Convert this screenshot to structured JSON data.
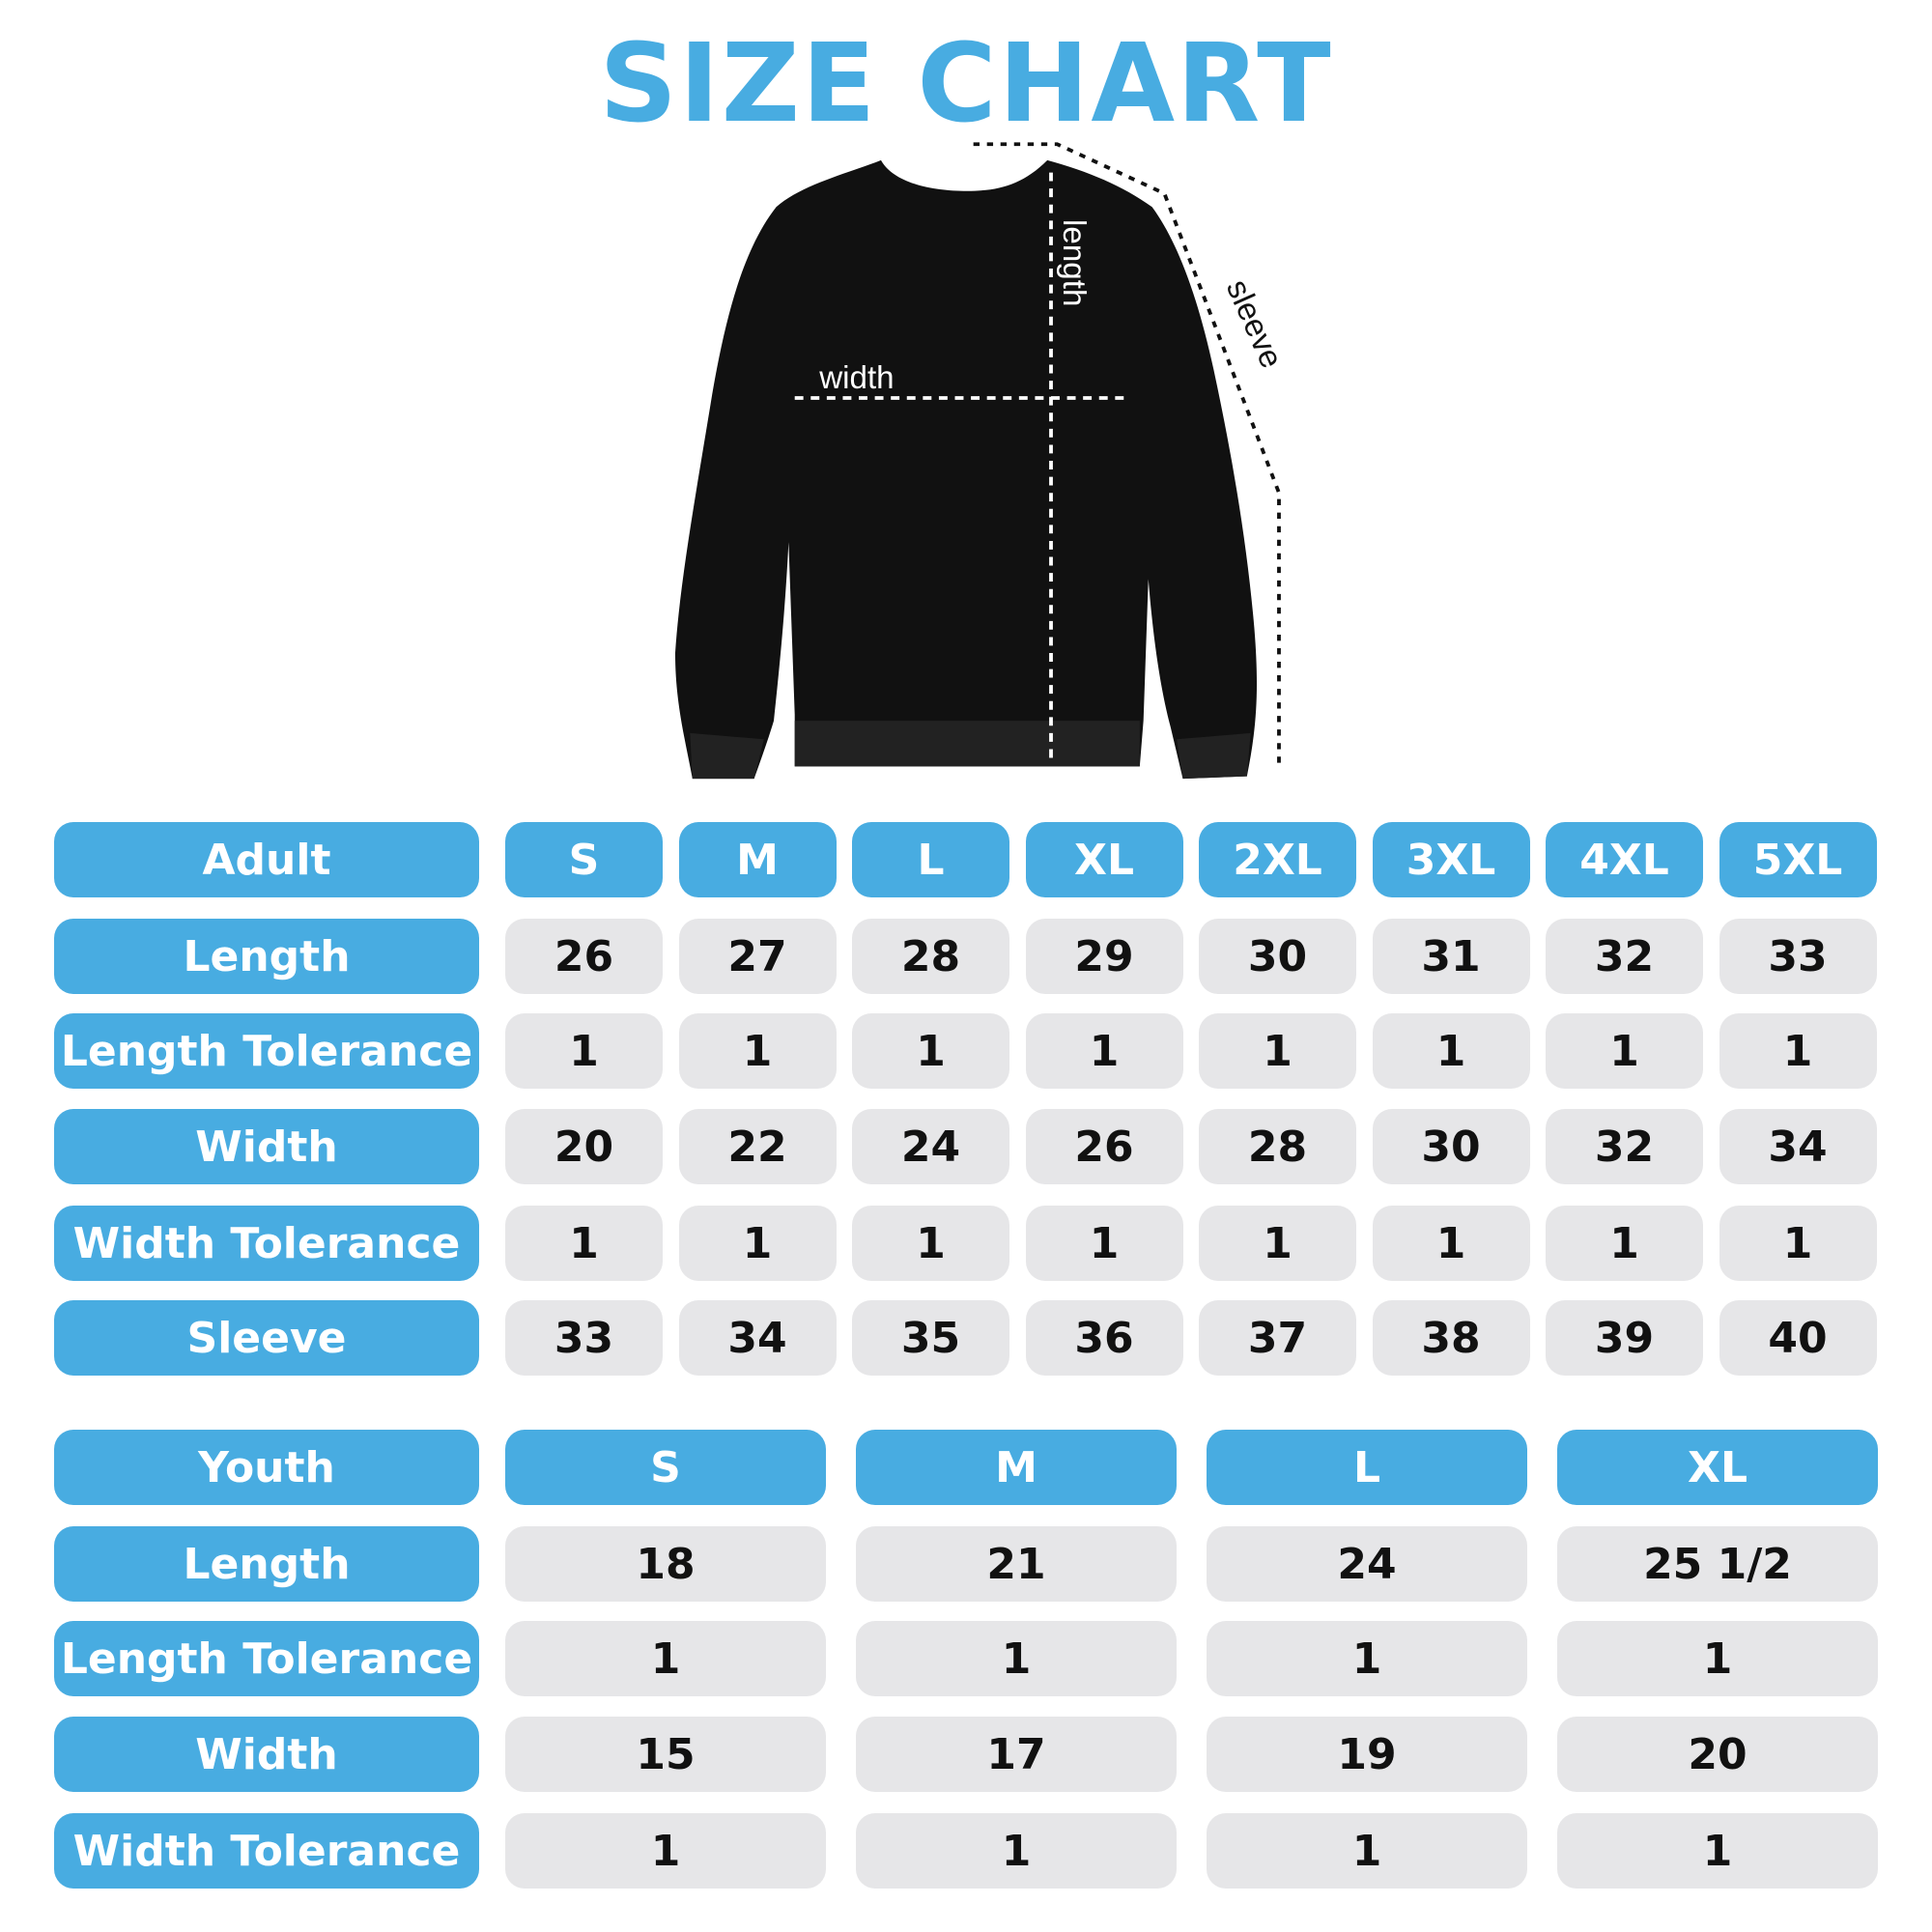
{
  "title": "SIZE CHART",
  "accent_color": "#48ace1",
  "diagram_labels": {
    "width": "width",
    "length": "length",
    "sleeve": "sleeve"
  },
  "adult": {
    "header": "Adult",
    "sizes": [
      "S",
      "M",
      "L",
      "XL",
      "2XL",
      "3XL",
      "4XL",
      "5XL"
    ],
    "rows": [
      {
        "label": "Length",
        "values": [
          "26",
          "27",
          "28",
          "29",
          "30",
          "31",
          "32",
          "33"
        ]
      },
      {
        "label": "Length Tolerance",
        "values": [
          "1",
          "1",
          "1",
          "1",
          "1",
          "1",
          "1",
          "1"
        ]
      },
      {
        "label": "Width",
        "values": [
          "20",
          "22",
          "24",
          "26",
          "28",
          "30",
          "32",
          "34"
        ]
      },
      {
        "label": "Width Tolerance",
        "values": [
          "1",
          "1",
          "1",
          "1",
          "1",
          "1",
          "1",
          "1"
        ]
      },
      {
        "label": "Sleeve",
        "values": [
          "33",
          "34",
          "35",
          "36",
          "37",
          "38",
          "39",
          "40"
        ]
      }
    ]
  },
  "youth": {
    "header": "Youth",
    "sizes": [
      "S",
      "M",
      "L",
      "XL"
    ],
    "rows": [
      {
        "label": "Length",
        "values": [
          "18",
          "21",
          "24",
          "25 1/2"
        ]
      },
      {
        "label": "Length Tolerance",
        "values": [
          "1",
          "1",
          "1",
          "1"
        ]
      },
      {
        "label": "Width",
        "values": [
          "15",
          "17",
          "19",
          "20"
        ]
      },
      {
        "label": "Width Tolerance",
        "values": [
          "1",
          "1",
          "1",
          "1"
        ]
      }
    ]
  }
}
